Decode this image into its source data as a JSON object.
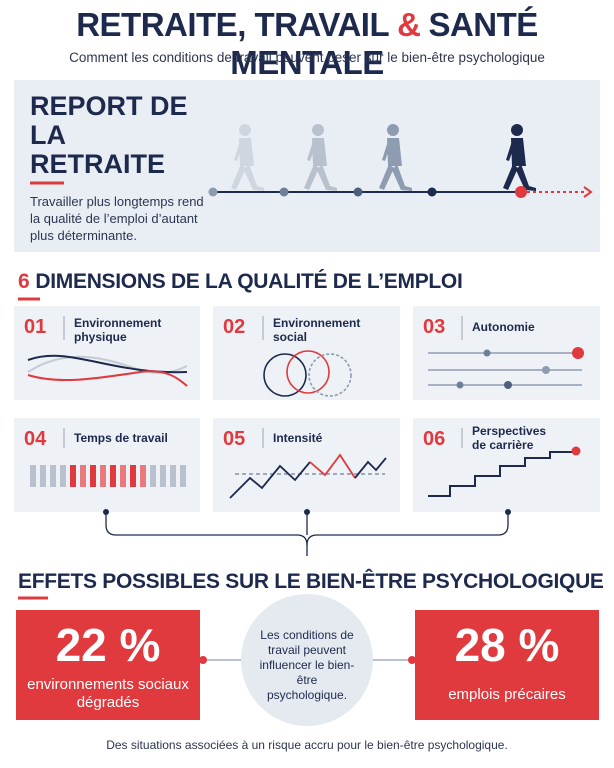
{
  "header": {
    "title_parts": [
      "RETRAITE, TRAVAIL",
      "&",
      "SANTÉ MENTALE"
    ],
    "subtitle": "Comment les conditions de travail peuvent peser sur le bien-être psychologique"
  },
  "retirement": {
    "title": "REPORT DE LA RETRAITE",
    "text": "Travailler plus longtemps rend la qualité de l’emploi d’autant plus déterminante."
  },
  "dimensions": {
    "title_number": "6",
    "title": "DIMENSIONS DE LA QUALITÉ DE L’EMPLOI",
    "cards": [
      {
        "number": "01",
        "label": "Environnement physique"
      },
      {
        "number": "02",
        "label": "Environnement social"
      },
      {
        "number": "03",
        "label": "Autonomie"
      },
      {
        "number": "04",
        "label": "Temps de travail"
      },
      {
        "number": "05",
        "label": "Intensité"
      },
      {
        "number": "06",
        "label": "Perspectives de carrière"
      }
    ]
  },
  "effects": {
    "title": "EFFETS POSSIBLES SUR LE BIEN-ÊTRE PSYCHOLOGIQUE",
    "left": {
      "value": "22 %",
      "label": "environnements sociaux dégradés"
    },
    "center": "Les conditions de travail peuvent influencer le bien-être psychologique.",
    "right": {
      "value": "28 %",
      "label": "emplois précaires"
    }
  },
  "footer": "Des situations associées à un risque accru pour le bien-être psychologique."
}
